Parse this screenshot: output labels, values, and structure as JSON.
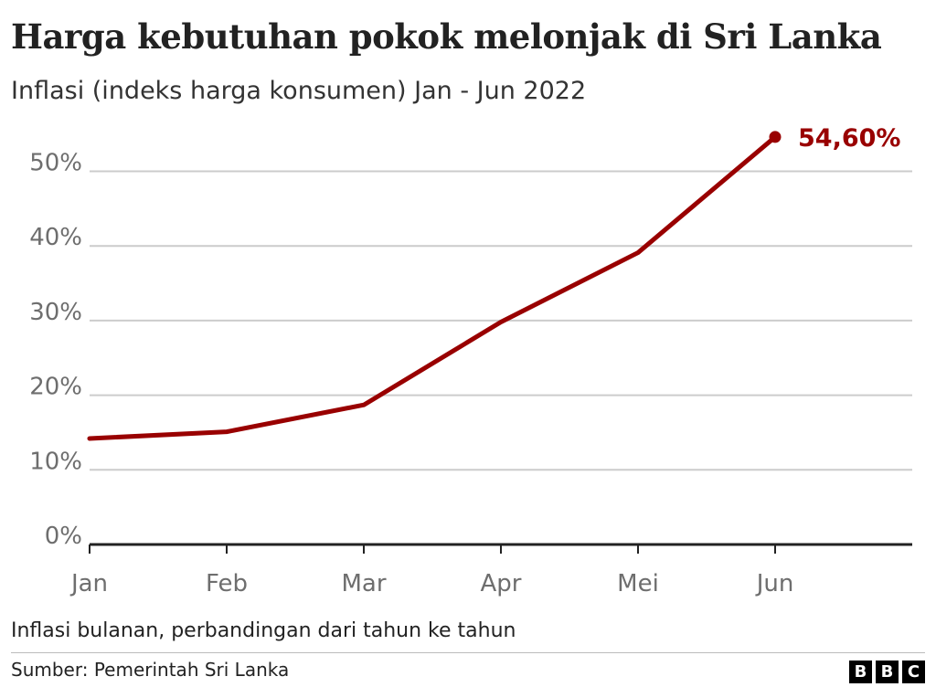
{
  "title": "Harga kebutuhan pokok melonjak di Sri Lanka",
  "subtitle": "Inflasi (indeks harga konsumen) Jan - Jun 2022",
  "footnote": "Inflasi bulanan, perbandingan dari tahun ke tahun",
  "source": "Sumber: Pemerintah Sri Lanka",
  "logo_letters": [
    "B",
    "B",
    "C"
  ],
  "colors": {
    "line": "#990000",
    "grid": "#cccccc",
    "axis": "#222222",
    "tick_text": "#6e6e6e"
  },
  "chart_data": {
    "type": "line",
    "title": "Harga kebutuhan pokok melonjak di Sri Lanka",
    "subtitle": "Inflasi (indeks harga konsumen) Jan - Jun 2022",
    "categories": [
      "Jan",
      "Feb",
      "Mar",
      "Apr",
      "Mei",
      "Jun"
    ],
    "series": [
      {
        "name": "Inflasi",
        "values": [
          14.2,
          15.1,
          18.7,
          29.8,
          39.1,
          54.6
        ]
      }
    ],
    "y_ticks": [
      0,
      10,
      20,
      30,
      40,
      50
    ],
    "y_tick_labels": [
      "0%",
      "10%",
      "20%",
      "30%",
      "40%",
      "50%"
    ],
    "ylim": [
      0,
      55
    ],
    "grid": true,
    "end_label": "54,60%",
    "xlabel": "",
    "ylabel": ""
  }
}
